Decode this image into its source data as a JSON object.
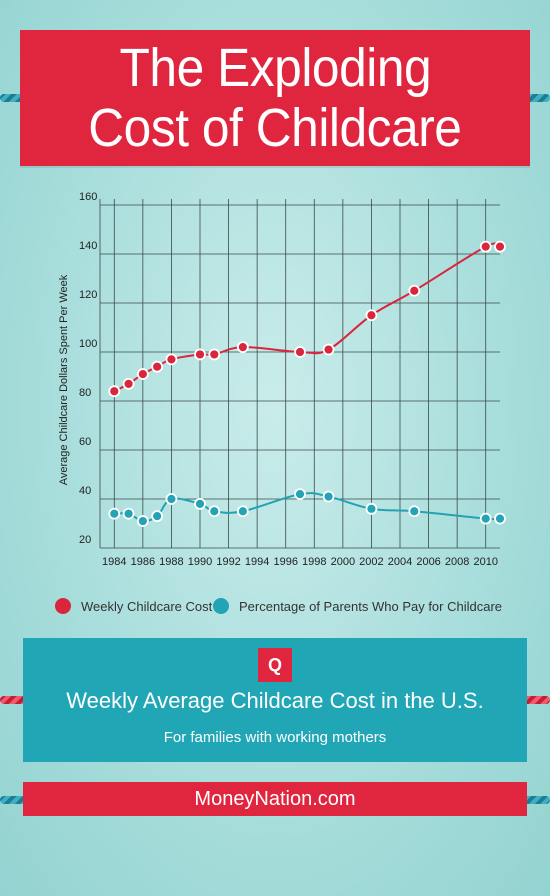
{
  "header": {
    "title_line1": "The Exploding",
    "title_line2": "Cost of Childcare"
  },
  "chart_data": {
    "type": "line",
    "ylabel": "Average Childcare Dollars Spent Per Week",
    "xlabel": "",
    "ylim": [
      20,
      160
    ],
    "yticks": [
      20,
      40,
      60,
      80,
      100,
      120,
      140,
      160
    ],
    "xlim": [
      1983,
      2011
    ],
    "xticks": [
      1984,
      1986,
      1988,
      1990,
      1992,
      1994,
      1996,
      1998,
      2000,
      2002,
      2004,
      2006,
      2008,
      2010
    ],
    "grid": true,
    "series": [
      {
        "name": "Weekly Childcare Cost",
        "color": "#d9263d",
        "x": [
          1984,
          1985,
          1986,
          1987,
          1988,
          1990,
          1991,
          1993,
          1997,
          1999,
          2002,
          2005,
          2010,
          2011
        ],
        "values": [
          84,
          87,
          91,
          94,
          97,
          99,
          99,
          102,
          100,
          101,
          115,
          125,
          143,
          143
        ]
      },
      {
        "name": "Percentage of Parents Who Pay for Childcare",
        "color": "#23a3b3",
        "x": [
          1984,
          1985,
          1986,
          1987,
          1988,
          1990,
          1991,
          1993,
          1997,
          1999,
          2002,
          2005,
          2010,
          2011
        ],
        "values": [
          34,
          34,
          31,
          33,
          40,
          38,
          35,
          35,
          42,
          41,
          36,
          35,
          32,
          32
        ]
      }
    ]
  },
  "info": {
    "badge": "Q",
    "title": "Weekly Average Childcare Cost in the U.S.",
    "subtitle": "For families with working mothers"
  },
  "footer": {
    "site": "MoneyNation.com"
  }
}
